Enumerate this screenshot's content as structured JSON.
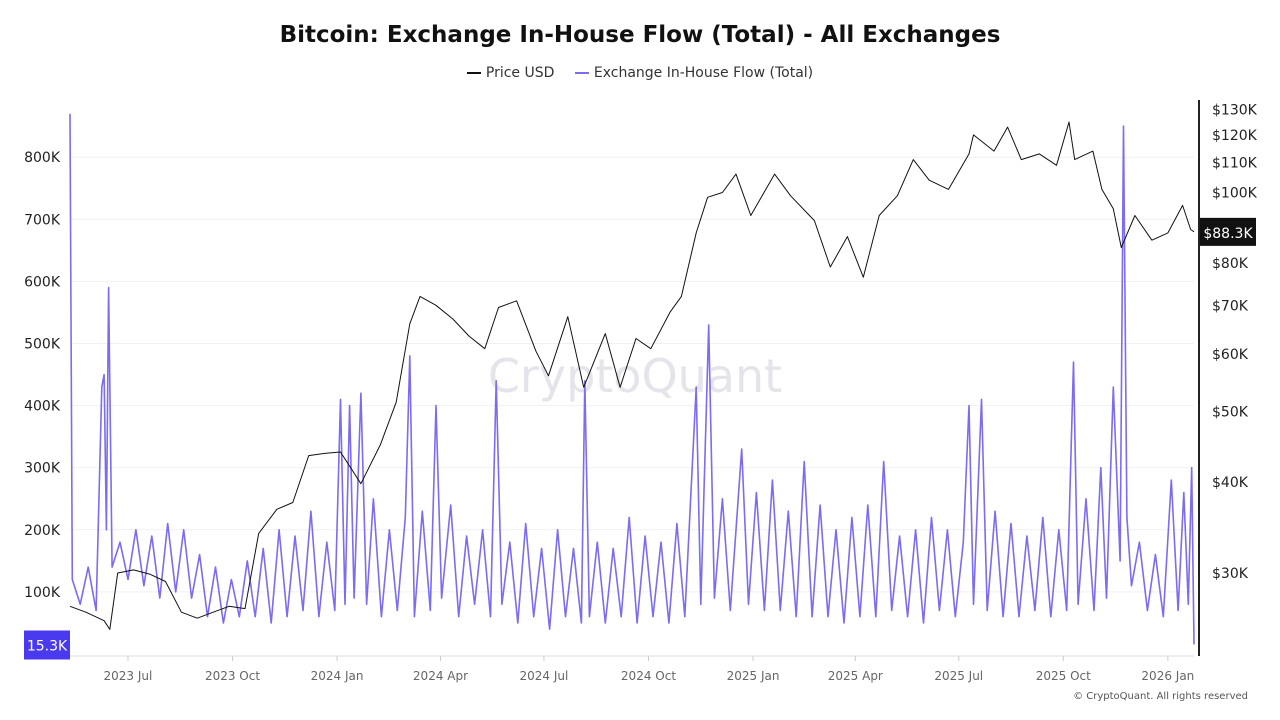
{
  "chart_data": {
    "type": "line",
    "title": "Bitcoin: Exchange In-House Flow (Total) - All Exchanges",
    "legend": [
      "Price USD",
      "Exchange In-House Flow (Total)"
    ],
    "legend_position": "top",
    "watermark": "CryptoQuant",
    "credit": "© CryptoQuant. All rights reserved",
    "grid": true,
    "x_ticks": [
      "2023-07-01",
      "2023-10-01",
      "2024-01-01",
      "2024-04-01",
      "2024-07-01",
      "2024-10-01",
      "2025-01-01",
      "2025-04-01",
      "2025-07-01",
      "2025-10-01",
      "2026-01-01"
    ],
    "x_tick_labels": [
      "2023 Jul",
      "2023 Oct",
      "2024 Jan",
      "2024 Apr",
      "2024 Jul",
      "2024 Oct",
      "2025 Jan",
      "2025 Apr",
      "2025 Jul",
      "2025 Oct",
      "2026 Jan"
    ],
    "xlim": [
      "2023-05-11",
      "2026-01-24"
    ],
    "left_axis": {
      "ylim": [
        0,
        890000
      ],
      "ticks": [
        100000,
        200000,
        300000,
        400000,
        500000,
        600000,
        700000,
        800000
      ],
      "tick_labels": [
        "100K",
        "200K",
        "300K",
        "400K",
        "500K",
        "600K",
        "700K",
        "800K"
      ],
      "last_value_label": "15.3K"
    },
    "right_axis": {
      "scale": "log",
      "ylim": [
        23000,
        132000
      ],
      "ticks": [
        30000,
        40000,
        50000,
        60000,
        70000,
        80000,
        100000,
        110000,
        120000,
        130000
      ],
      "tick_labels": [
        "$30K",
        "$40K",
        "$50K",
        "$60K",
        "$70K",
        "$80K",
        "$100K",
        "$110K",
        "$120K",
        "$130K"
      ],
      "last_value_label": "$88.3K"
    },
    "colors": {
      "price": "#111111",
      "flow": "#7b6cf0",
      "flow_badge": "#4a3aef",
      "price_badge": "#111111"
    },
    "series": [
      {
        "name": "Price USD",
        "axis": "right",
        "points": [
          [
            "2023-05-11",
            27000
          ],
          [
            "2023-05-25",
            26500
          ],
          [
            "2023-06-10",
            25800
          ],
          [
            "2023-06-15",
            25100
          ],
          [
            "2023-06-22",
            30000
          ],
          [
            "2023-07-06",
            30300
          ],
          [
            "2023-07-20",
            29900
          ],
          [
            "2023-08-03",
            29200
          ],
          [
            "2023-08-17",
            26500
          ],
          [
            "2023-08-31",
            26000
          ],
          [
            "2023-09-14",
            26500
          ],
          [
            "2023-09-28",
            27000
          ],
          [
            "2023-10-12",
            26800
          ],
          [
            "2023-10-24",
            34000
          ],
          [
            "2023-11-09",
            36700
          ],
          [
            "2023-11-23",
            37500
          ],
          [
            "2023-12-07",
            43500
          ],
          [
            "2023-12-21",
            43800
          ],
          [
            "2024-01-04",
            44000
          ],
          [
            "2024-01-22",
            39800
          ],
          [
            "2024-02-08",
            45000
          ],
          [
            "2024-02-22",
            51500
          ],
          [
            "2024-03-05",
            66000
          ],
          [
            "2024-03-14",
            72000
          ],
          [
            "2024-03-28",
            70000
          ],
          [
            "2024-04-12",
            67000
          ],
          [
            "2024-04-26",
            63500
          ],
          [
            "2024-05-10",
            61000
          ],
          [
            "2024-05-22",
            69500
          ],
          [
            "2024-06-07",
            71000
          ],
          [
            "2024-06-24",
            60500
          ],
          [
            "2024-07-05",
            56000
          ],
          [
            "2024-07-22",
            67500
          ],
          [
            "2024-08-05",
            54000
          ],
          [
            "2024-08-24",
            64000
          ],
          [
            "2024-09-06",
            54000
          ],
          [
            "2024-09-20",
            63000
          ],
          [
            "2024-10-03",
            61000
          ],
          [
            "2024-10-20",
            68500
          ],
          [
            "2024-10-30",
            72000
          ],
          [
            "2024-11-12",
            88000
          ],
          [
            "2024-11-22",
            98500
          ],
          [
            "2024-12-05",
            100000
          ],
          [
            "2024-12-17",
            106000
          ],
          [
            "2024-12-30",
            93000
          ],
          [
            "2025-01-20",
            106000
          ],
          [
            "2025-02-03",
            99000
          ],
          [
            "2025-02-24",
            91500
          ],
          [
            "2025-03-10",
            79000
          ],
          [
            "2025-03-25",
            87000
          ],
          [
            "2025-04-08",
            76500
          ],
          [
            "2025-04-22",
            93000
          ],
          [
            "2025-05-08",
            99000
          ],
          [
            "2025-05-22",
            111000
          ],
          [
            "2025-06-05",
            104000
          ],
          [
            "2025-06-22",
            101000
          ],
          [
            "2025-07-10",
            113000
          ],
          [
            "2025-07-14",
            120000
          ],
          [
            "2025-08-01",
            114000
          ],
          [
            "2025-08-13",
            123000
          ],
          [
            "2025-08-25",
            111000
          ],
          [
            "2025-09-10",
            113000
          ],
          [
            "2025-09-25",
            109000
          ],
          [
            "2025-10-06",
            125000
          ],
          [
            "2025-10-11",
            111000
          ],
          [
            "2025-10-27",
            114000
          ],
          [
            "2025-11-04",
            101000
          ],
          [
            "2025-11-14",
            95000
          ],
          [
            "2025-11-21",
            84000
          ],
          [
            "2025-12-03",
            93000
          ],
          [
            "2025-12-18",
            86000
          ],
          [
            "2026-01-01",
            88000
          ],
          [
            "2026-01-14",
            96000
          ],
          [
            "2026-01-21",
            89000
          ],
          [
            "2026-01-24",
            88300
          ]
        ]
      },
      {
        "name": "Exchange In-House Flow (Total)",
        "axis": "left",
        "points": [
          [
            "2023-05-11",
            870000
          ],
          [
            "2023-05-13",
            120000
          ],
          [
            "2023-05-20",
            80000
          ],
          [
            "2023-05-27",
            140000
          ],
          [
            "2023-06-03",
            70000
          ],
          [
            "2023-06-08",
            430000
          ],
          [
            "2023-06-10",
            450000
          ],
          [
            "2023-06-12",
            200000
          ],
          [
            "2023-06-14",
            590000
          ],
          [
            "2023-06-17",
            140000
          ],
          [
            "2023-06-24",
            180000
          ],
          [
            "2023-07-01",
            120000
          ],
          [
            "2023-07-08",
            200000
          ],
          [
            "2023-07-15",
            110000
          ],
          [
            "2023-07-22",
            190000
          ],
          [
            "2023-07-29",
            90000
          ],
          [
            "2023-08-05",
            210000
          ],
          [
            "2023-08-12",
            100000
          ],
          [
            "2023-08-19",
            200000
          ],
          [
            "2023-08-26",
            90000
          ],
          [
            "2023-09-02",
            160000
          ],
          [
            "2023-09-09",
            60000
          ],
          [
            "2023-09-16",
            140000
          ],
          [
            "2023-09-23",
            50000
          ],
          [
            "2023-09-30",
            120000
          ],
          [
            "2023-10-07",
            60000
          ],
          [
            "2023-10-14",
            150000
          ],
          [
            "2023-10-21",
            60000
          ],
          [
            "2023-10-28",
            170000
          ],
          [
            "2023-11-04",
            50000
          ],
          [
            "2023-11-11",
            200000
          ],
          [
            "2023-11-18",
            60000
          ],
          [
            "2023-11-25",
            190000
          ],
          [
            "2023-12-02",
            70000
          ],
          [
            "2023-12-09",
            230000
          ],
          [
            "2023-12-16",
            60000
          ],
          [
            "2023-12-23",
            180000
          ],
          [
            "2023-12-30",
            70000
          ],
          [
            "2024-01-04",
            410000
          ],
          [
            "2024-01-08",
            80000
          ],
          [
            "2024-01-12",
            400000
          ],
          [
            "2024-01-16",
            90000
          ],
          [
            "2024-01-22",
            420000
          ],
          [
            "2024-01-27",
            80000
          ],
          [
            "2024-02-02",
            250000
          ],
          [
            "2024-02-09",
            60000
          ],
          [
            "2024-02-16",
            200000
          ],
          [
            "2024-02-23",
            70000
          ],
          [
            "2024-03-01",
            220000
          ],
          [
            "2024-03-05",
            480000
          ],
          [
            "2024-03-09",
            60000
          ],
          [
            "2024-03-16",
            230000
          ],
          [
            "2024-03-23",
            70000
          ],
          [
            "2024-03-28",
            400000
          ],
          [
            "2024-04-02",
            90000
          ],
          [
            "2024-04-10",
            240000
          ],
          [
            "2024-04-17",
            60000
          ],
          [
            "2024-04-24",
            190000
          ],
          [
            "2024-05-01",
            80000
          ],
          [
            "2024-05-08",
            200000
          ],
          [
            "2024-05-15",
            60000
          ],
          [
            "2024-05-20",
            440000
          ],
          [
            "2024-05-25",
            80000
          ],
          [
            "2024-06-01",
            180000
          ],
          [
            "2024-06-08",
            50000
          ],
          [
            "2024-06-15",
            210000
          ],
          [
            "2024-06-22",
            60000
          ],
          [
            "2024-06-29",
            170000
          ],
          [
            "2024-07-06",
            40000
          ],
          [
            "2024-07-13",
            200000
          ],
          [
            "2024-07-20",
            60000
          ],
          [
            "2024-07-27",
            170000
          ],
          [
            "2024-08-03",
            50000
          ],
          [
            "2024-08-06",
            440000
          ],
          [
            "2024-08-10",
            60000
          ],
          [
            "2024-08-17",
            180000
          ],
          [
            "2024-08-24",
            50000
          ],
          [
            "2024-08-31",
            170000
          ],
          [
            "2024-09-07",
            60000
          ],
          [
            "2024-09-14",
            220000
          ],
          [
            "2024-09-21",
            50000
          ],
          [
            "2024-09-28",
            190000
          ],
          [
            "2024-10-05",
            60000
          ],
          [
            "2024-10-12",
            180000
          ],
          [
            "2024-10-19",
            50000
          ],
          [
            "2024-10-26",
            210000
          ],
          [
            "2024-11-02",
            60000
          ],
          [
            "2024-11-12",
            430000
          ],
          [
            "2024-11-16",
            80000
          ],
          [
            "2024-11-23",
            530000
          ],
          [
            "2024-11-28",
            90000
          ],
          [
            "2024-12-05",
            250000
          ],
          [
            "2024-12-12",
            70000
          ],
          [
            "2024-12-22",
            330000
          ],
          [
            "2024-12-28",
            80000
          ],
          [
            "2025-01-04",
            260000
          ],
          [
            "2025-01-11",
            70000
          ],
          [
            "2025-01-18",
            280000
          ],
          [
            "2025-01-25",
            70000
          ],
          [
            "2025-02-01",
            230000
          ],
          [
            "2025-02-08",
            60000
          ],
          [
            "2025-02-15",
            310000
          ],
          [
            "2025-02-22",
            60000
          ],
          [
            "2025-03-01",
            240000
          ],
          [
            "2025-03-08",
            60000
          ],
          [
            "2025-03-15",
            200000
          ],
          [
            "2025-03-22",
            50000
          ],
          [
            "2025-03-29",
            220000
          ],
          [
            "2025-04-05",
            60000
          ],
          [
            "2025-04-12",
            240000
          ],
          [
            "2025-04-19",
            60000
          ],
          [
            "2025-04-26",
            310000
          ],
          [
            "2025-05-03",
            70000
          ],
          [
            "2025-05-10",
            190000
          ],
          [
            "2025-05-17",
            60000
          ],
          [
            "2025-05-24",
            200000
          ],
          [
            "2025-05-31",
            50000
          ],
          [
            "2025-06-07",
            220000
          ],
          [
            "2025-06-14",
            70000
          ],
          [
            "2025-06-21",
            200000
          ],
          [
            "2025-06-28",
            60000
          ],
          [
            "2025-07-05",
            180000
          ],
          [
            "2025-07-10",
            400000
          ],
          [
            "2025-07-14",
            80000
          ],
          [
            "2025-07-21",
            410000
          ],
          [
            "2025-07-26",
            70000
          ],
          [
            "2025-08-02",
            230000
          ],
          [
            "2025-08-09",
            60000
          ],
          [
            "2025-08-16",
            210000
          ],
          [
            "2025-08-23",
            60000
          ],
          [
            "2025-08-30",
            190000
          ],
          [
            "2025-09-06",
            70000
          ],
          [
            "2025-09-13",
            220000
          ],
          [
            "2025-09-20",
            60000
          ],
          [
            "2025-09-27",
            200000
          ],
          [
            "2025-10-04",
            70000
          ],
          [
            "2025-10-10",
            470000
          ],
          [
            "2025-10-14",
            80000
          ],
          [
            "2025-10-21",
            250000
          ],
          [
            "2025-10-28",
            70000
          ],
          [
            "2025-11-03",
            300000
          ],
          [
            "2025-11-08",
            90000
          ],
          [
            "2025-11-14",
            430000
          ],
          [
            "2025-11-20",
            150000
          ],
          [
            "2025-11-23",
            850000
          ],
          [
            "2025-11-26",
            220000
          ],
          [
            "2025-11-30",
            110000
          ],
          [
            "2025-12-07",
            180000
          ],
          [
            "2025-12-14",
            70000
          ],
          [
            "2025-12-21",
            160000
          ],
          [
            "2025-12-28",
            60000
          ],
          [
            "2026-01-04",
            280000
          ],
          [
            "2026-01-10",
            70000
          ],
          [
            "2026-01-15",
            260000
          ],
          [
            "2026-01-19",
            80000
          ],
          [
            "2026-01-22",
            300000
          ],
          [
            "2026-01-24",
            15300
          ]
        ]
      }
    ]
  }
}
